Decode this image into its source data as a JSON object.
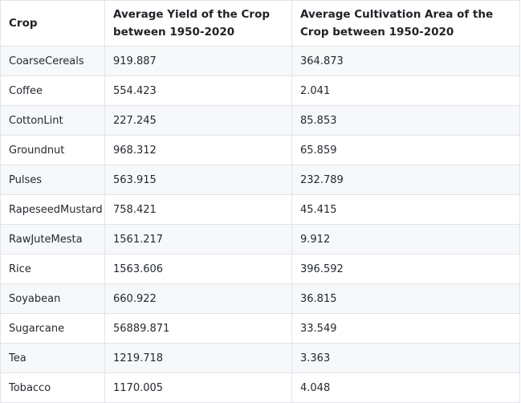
{
  "table": {
    "headers": [
      "Crop",
      "Average Yield of the Crop between 1950-2020",
      "Average Cultivation Area of the Crop between 1950-2020"
    ],
    "rows": [
      [
        "CoarseCereals",
        "919.887",
        "364.873"
      ],
      [
        "Coffee",
        "554.423",
        "2.041"
      ],
      [
        "CottonLint",
        "227.245",
        "85.853"
      ],
      [
        "Groundnut",
        "968.312",
        "65.859"
      ],
      [
        "Pulses",
        "563.915",
        "232.789"
      ],
      [
        "RapeseedMustard",
        "758.421",
        "45.415"
      ],
      [
        "RawJuteMesta",
        "1561.217",
        "9.912"
      ],
      [
        "Rice",
        "1563.606",
        "396.592"
      ],
      [
        "Soyabean",
        "660.922",
        "36.815"
      ],
      [
        "Sugarcane",
        "56889.871",
        "33.549"
      ],
      [
        "Tea",
        "1219.718",
        "3.363"
      ],
      [
        "Tobacco",
        "1170.005",
        "4.048"
      ]
    ]
  },
  "colors": {
    "border": "#e1e4e8",
    "stripe": "#f6f8fa",
    "text": "#24292f"
  }
}
